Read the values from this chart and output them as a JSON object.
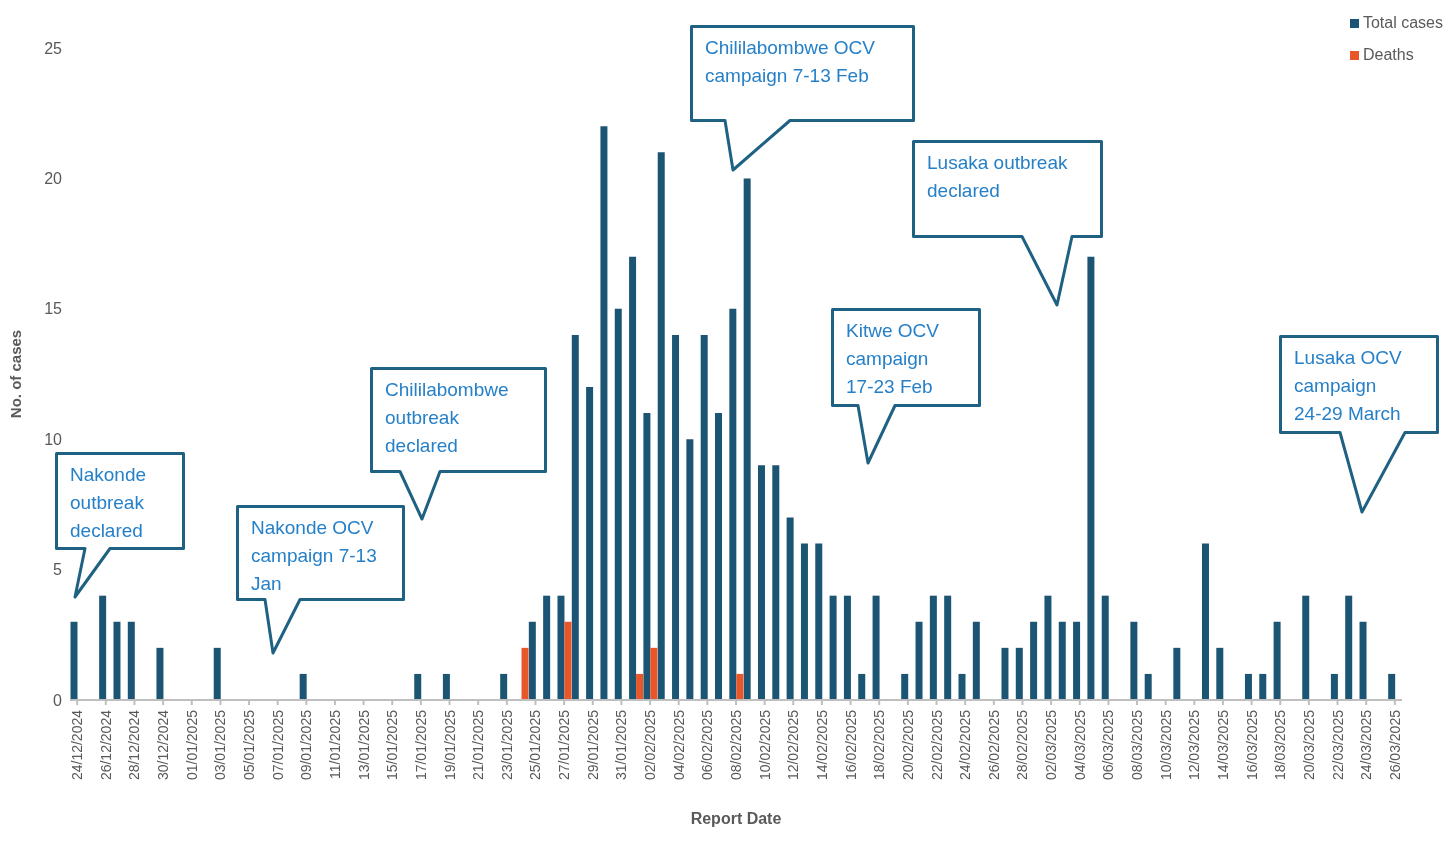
{
  "chart_data": {
    "type": "bar",
    "xlabel": "Report Date",
    "ylabel": "No. of cases",
    "categories": [
      "24/12/2024",
      null,
      "26/12/2024",
      null,
      "28/12/2024",
      null,
      "30/12/2024",
      null,
      "01/01/2025",
      null,
      "03/01/2025",
      null,
      "05/01/2025",
      null,
      "07/01/2025",
      null,
      "09/01/2025",
      null,
      "11/01/2025",
      null,
      "13/01/2025",
      null,
      "15/01/2025",
      null,
      "17/01/2025",
      null,
      "19/01/2025",
      null,
      "21/01/2025",
      null,
      "23/01/2025",
      null,
      "25/01/2025",
      null,
      "27/01/2025",
      null,
      "29/01/2025",
      null,
      "31/01/2025",
      null,
      "02/02/2025",
      null,
      "04/02/2025",
      null,
      "06/02/2025",
      null,
      "08/02/2025",
      null,
      "10/02/2025",
      null,
      "12/02/2025",
      null,
      "14/02/2025",
      null,
      "16/02/2025",
      null,
      "18/02/2025",
      null,
      "20/02/2025",
      null,
      "22/02/2025",
      null,
      "24/02/2025",
      null,
      "26/02/2025",
      null,
      "28/02/2025",
      null,
      "02/03/2025",
      null,
      "04/03/2025",
      null,
      "06/03/2025",
      null,
      "08/03/2025",
      null,
      "10/03/2025",
      null,
      "12/03/2025",
      null,
      "14/03/2025",
      null,
      "16/03/2025",
      null,
      "18/03/2025",
      null,
      "20/03/2025",
      null,
      "22/03/2025",
      null,
      "24/03/2025",
      null,
      "26/03/2025"
    ],
    "series": [
      {
        "name": "Total cases",
        "color": "#1b5573",
        "values": [
          3,
          0,
          4,
          3,
          3,
          0,
          2,
          0,
          0,
          0,
          2,
          0,
          0,
          0,
          0,
          0,
          1,
          0,
          0,
          0,
          0,
          0,
          0,
          0,
          1,
          0,
          1,
          0,
          0,
          0,
          1,
          0,
          3,
          4,
          4,
          14,
          12,
          22,
          15,
          17,
          11,
          21,
          14,
          10,
          14,
          11,
          15,
          20,
          9,
          9,
          7,
          6,
          6,
          4,
          4,
          1,
          4,
          0,
          1,
          3,
          4,
          4,
          1,
          3,
          0,
          2,
          2,
          3,
          4,
          3,
          3,
          17,
          4,
          0,
          3,
          1,
          0,
          2,
          0,
          6,
          2,
          0,
          1,
          1,
          3,
          0,
          4,
          0,
          1,
          4,
          3,
          0,
          1
        ]
      },
      {
        "name": "Deaths",
        "color": "#e8562a",
        "values": [
          0,
          0,
          0,
          0,
          0,
          0,
          0,
          0,
          0,
          0,
          0,
          0,
          0,
          0,
          0,
          0,
          0,
          0,
          0,
          0,
          0,
          0,
          0,
          0,
          0,
          0,
          0,
          0,
          0,
          0,
          0,
          2,
          0,
          0,
          3,
          0,
          0,
          0,
          0,
          1,
          2,
          0,
          0,
          0,
          0,
          0,
          1,
          0,
          0,
          0,
          0,
          0,
          0,
          0,
          0,
          0,
          0,
          0,
          0,
          0,
          0,
          0,
          0,
          0,
          0,
          0,
          0,
          0,
          0,
          0,
          0,
          0,
          0,
          0,
          0,
          0,
          0,
          0,
          0,
          0,
          0,
          0,
          0,
          0,
          0,
          0,
          0,
          0,
          0,
          0,
          0,
          0,
          0
        ]
      }
    ],
    "ylim": [
      0,
      25
    ],
    "yticks": [
      0,
      5,
      10,
      15,
      20,
      25
    ],
    "legend": "top right",
    "annotations": [
      "Nakonde outbreak declared",
      "Nakonde OCV campaign 7-13 Jan",
      "Chililabombwe outbreak declared",
      "Chililabombwe OCV campaign 7-13 Feb",
      "Kitwe OCV campaign 17-23 Feb",
      "Lusaka outbreak declared",
      "Lusaka OCV campaign 24-29 March"
    ]
  }
}
